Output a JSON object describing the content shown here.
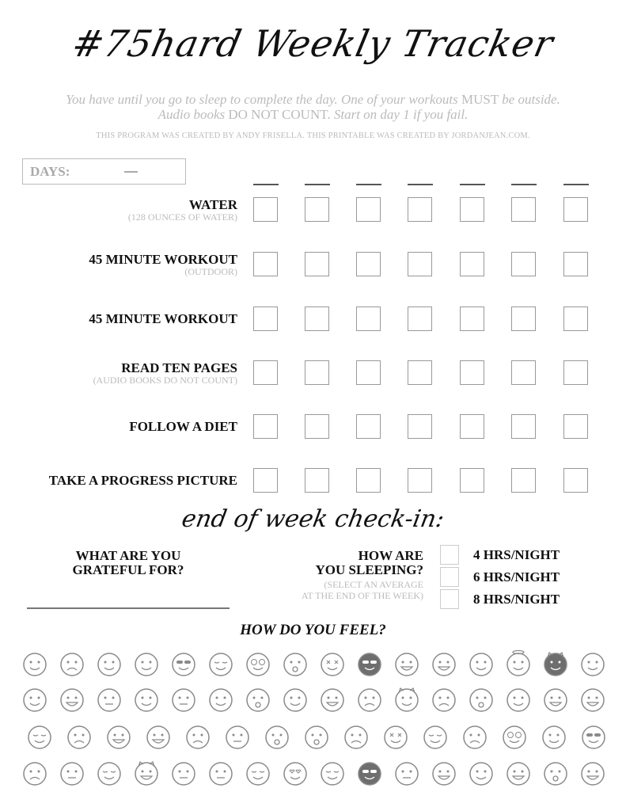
{
  "title": "#75hard Weekly Tracker",
  "intro": {
    "line1_italic": "You have until you go to sleep to complete the day. One of your workouts",
    "line1_caps": "MUST",
    "line1_end": "be outside.",
    "line2_italic": "Audio books",
    "line2_caps": "DO NOT COUNT.",
    "line2_end": "Start on day 1 if you fail."
  },
  "credit": "THIS PROGRAM WAS CREATED BY ANDY FRISELLA. THIS PRINTABLE WAS CREATED BY JORDANJEAN.COM.",
  "days_label": "DAYS:",
  "tasks": [
    {
      "label": "WATER",
      "sub": "(128 OUNCES OF WATER)"
    },
    {
      "label": "45 MINUTE WORKOUT",
      "sub": "(OUTDOOR)"
    },
    {
      "label": "45 MINUTE WORKOUT",
      "sub": ""
    },
    {
      "label": "READ TEN PAGES",
      "sub": "(AUDIO BOOKS DO NOT COUNT)"
    },
    {
      "label": "FOLLOW A DIET",
      "sub": ""
    },
    {
      "label": "TAKE A PROGRESS PICTURE",
      "sub": ""
    }
  ],
  "checkin": {
    "heading": "end of week check-in:",
    "grateful_1": "WHAT ARE YOU",
    "grateful_2": "GRATEFUL FOR?",
    "sleep_1": "HOW ARE",
    "sleep_2": "YOU SLEEPING?",
    "sleep_note_1": "(SELECT AN AVERAGE",
    "sleep_note_2": "AT THE END OF THE WEEK)",
    "sleep_options": [
      "4 HRS/NIGHT",
      "6 HRS/NIGHT",
      "8 HRS/NIGHT"
    ]
  },
  "feel_heading": "HOW DO YOU FEEL?",
  "emoji_rows": [
    [
      "smile",
      "sad",
      "bandage-head",
      "slight-smile",
      "sunglasses",
      "wink",
      "nerd",
      "shocked",
      "dizzy",
      "ninja-dark",
      "angry",
      "grimace",
      "drool",
      "angel",
      "devil-dark",
      "smirk"
    ],
    [
      "upside-down",
      "laugh",
      "neutral-smile",
      "pirate",
      "flat",
      "kiss",
      "surprised",
      "bandana",
      "grin",
      "worried",
      "devil",
      "confused",
      "scream",
      "tongue",
      "vampire",
      "buck-teeth"
    ],
    [
      "sleepy",
      "cry",
      "tears-of-joy",
      "loud-cry",
      "frown",
      "unamused",
      "shush",
      "astonished",
      "pout",
      "x-eyes",
      "squint",
      "pain",
      "hypnotized",
      "sweat",
      "cool"
    ],
    [
      "disappointed",
      "stitched-mouth",
      "relieved",
      "imp",
      "hmm",
      "shifty",
      "zzz",
      "heart-eyes",
      "smirk-wink",
      "masked-dark",
      "no-mouth",
      "beam",
      "tongue-out",
      "big-grin",
      "monocle",
      "teeth"
    ]
  ],
  "colors": {
    "emoji_stroke": "#8a8a8a",
    "emoji_dark": "#6e6e6e",
    "text": "#111111",
    "muted": "#bbbbbb"
  }
}
